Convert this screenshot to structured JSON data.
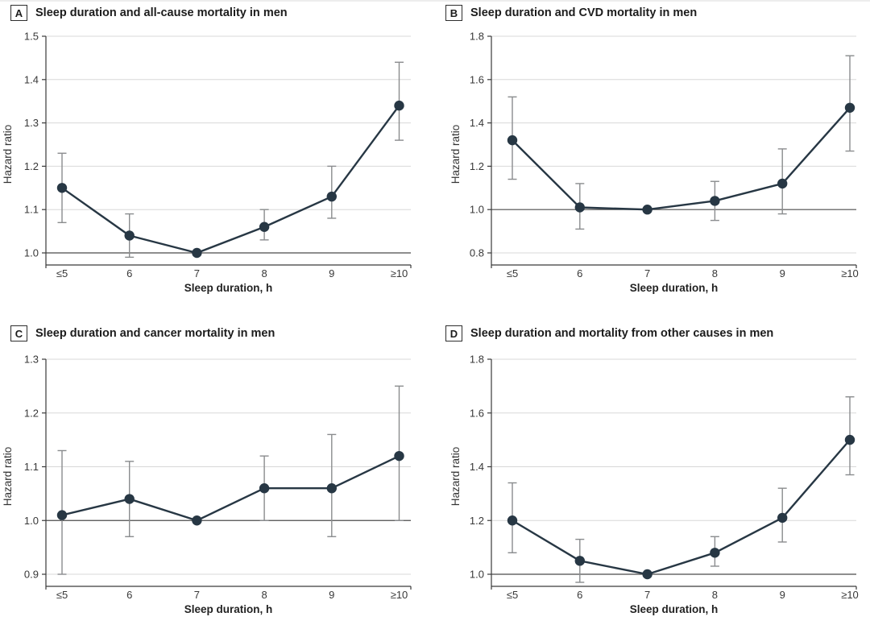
{
  "colors": {
    "series": "#273744",
    "error_bar": "#8a8c8e",
    "gridline": "#d8d8d8",
    "reference_line": "#4b4b4b",
    "axis": "#3a3a3a",
    "text": "#1c1c1c",
    "background": "#ffffff"
  },
  "chart_data": [
    {
      "type": "line",
      "panel_label": "A",
      "title": "Sleep duration and all-cause mortality in men",
      "xlabel": "Sleep duration, h",
      "ylabel": "Hazard ratio",
      "categories": [
        "≤5",
        "6",
        "7",
        "8",
        "9",
        "≥10"
      ],
      "yticks": [
        1.0,
        1.1,
        1.2,
        1.3,
        1.4,
        1.5
      ],
      "ylim": [
        1.0,
        1.5
      ],
      "grid": true,
      "legend": false,
      "reference_line": 1.0,
      "values": [
        1.15,
        1.04,
        1.0,
        1.06,
        1.13,
        1.34
      ],
      "ci_low": [
        1.07,
        0.99,
        null,
        1.03,
        1.08,
        1.26
      ],
      "ci_high": [
        1.23,
        1.09,
        null,
        1.1,
        1.2,
        1.44
      ]
    },
    {
      "type": "line",
      "panel_label": "B",
      "title": "Sleep duration and CVD mortality in men",
      "xlabel": "Sleep duration, h",
      "ylabel": "Hazard ratio",
      "categories": [
        "≤5",
        "6",
        "7",
        "8",
        "9",
        "≥10"
      ],
      "yticks": [
        0.8,
        1.0,
        1.2,
        1.4,
        1.6,
        1.8
      ],
      "ylim": [
        0.8,
        1.8
      ],
      "grid": true,
      "legend": false,
      "reference_line": 1.0,
      "values": [
        1.32,
        1.01,
        1.0,
        1.04,
        1.12,
        1.47
      ],
      "ci_low": [
        1.14,
        0.91,
        null,
        0.95,
        0.98,
        1.27
      ],
      "ci_high": [
        1.52,
        1.12,
        null,
        1.13,
        1.28,
        1.71
      ]
    },
    {
      "type": "line",
      "panel_label": "C",
      "title": "Sleep duration and cancer mortality in men",
      "xlabel": "Sleep duration, h",
      "ylabel": "Hazard ratio",
      "categories": [
        "≤5",
        "6",
        "7",
        "8",
        "9",
        "≥10"
      ],
      "yticks": [
        0.9,
        1.0,
        1.1,
        1.2,
        1.3
      ],
      "ylim": [
        0.9,
        1.3
      ],
      "grid": true,
      "legend": false,
      "reference_line": 1.0,
      "values": [
        1.01,
        1.04,
        1.0,
        1.06,
        1.06,
        1.12
      ],
      "ci_low": [
        0.9,
        0.97,
        null,
        1.0,
        0.97,
        1.0
      ],
      "ci_high": [
        1.13,
        1.11,
        null,
        1.12,
        1.16,
        1.25
      ]
    },
    {
      "type": "line",
      "panel_label": "D",
      "title": "Sleep duration and mortality from other causes in men",
      "xlabel": "Sleep duration, h",
      "ylabel": "Hazard ratio",
      "categories": [
        "≤5",
        "6",
        "7",
        "8",
        "9",
        "≥10"
      ],
      "yticks": [
        1.0,
        1.2,
        1.4,
        1.6,
        1.8
      ],
      "ylim": [
        1.0,
        1.8
      ],
      "grid": true,
      "legend": false,
      "reference_line": 1.0,
      "values": [
        1.2,
        1.05,
        1.0,
        1.08,
        1.21,
        1.5
      ],
      "ci_low": [
        1.08,
        0.97,
        null,
        1.03,
        1.12,
        1.37
      ],
      "ci_high": [
        1.34,
        1.13,
        null,
        1.14,
        1.32,
        1.66
      ]
    }
  ]
}
